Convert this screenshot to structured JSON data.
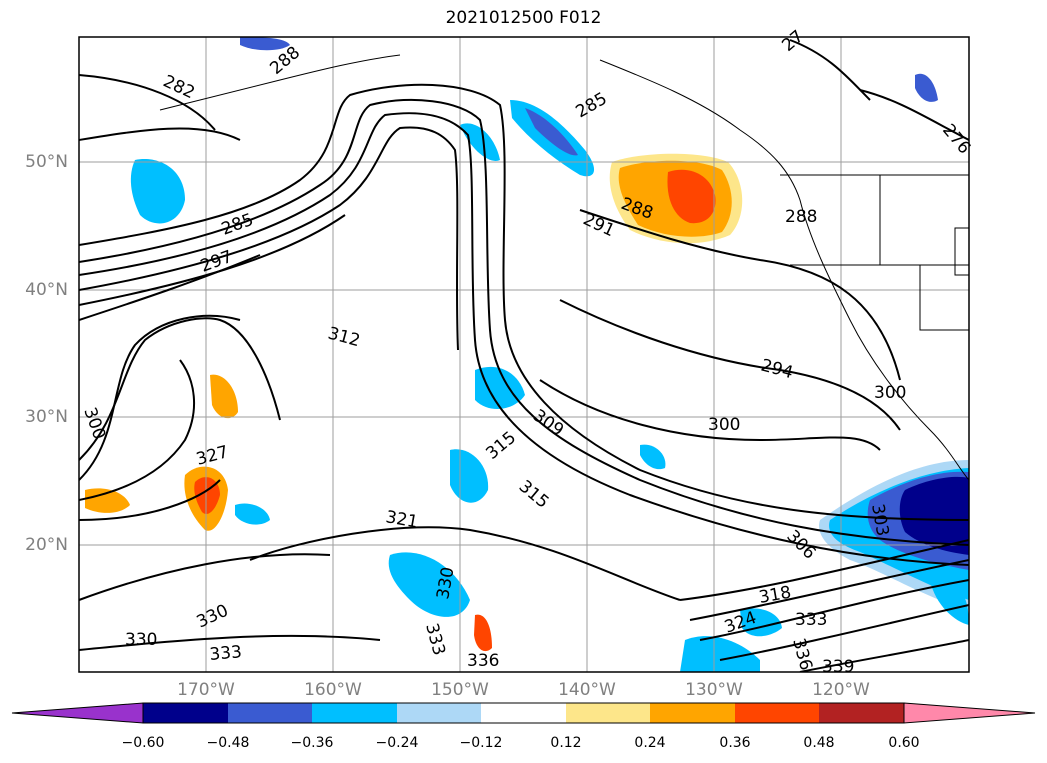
{
  "title": "2021012500 F012",
  "colors": {
    "frame": "#000000",
    "grid": "#9e9e9e",
    "coast": "#000000",
    "label_gray": "#808080"
  },
  "axes": {
    "lat_labels": [
      "50°N",
      "40°N",
      "30°N",
      "20°N"
    ],
    "lon_labels": [
      "170°W",
      "160°W",
      "150°W",
      "140°W",
      "130°W",
      "120°W"
    ]
  },
  "colorbar": {
    "colors": [
      "#9932cc",
      "#00008b",
      "#3a5bd1",
      "#00bfff",
      "#add8f6",
      "#ffffff",
      "#fde68a",
      "#ffa500",
      "#ff4500",
      "#b22222",
      "#ff88aa"
    ],
    "ticks": [
      "−0.60",
      "−0.48",
      "−0.36",
      "−0.24",
      "−0.12",
      "0.12",
      "0.24",
      "0.36",
      "0.48",
      "0.60"
    ]
  },
  "contour_labels": [
    "282",
    "288",
    "285",
    "285",
    "297",
    "312",
    "291",
    "288",
    "288",
    "294",
    "300",
    "300",
    "309",
    "315",
    "315",
    "327",
    "321",
    "306",
    "303",
    "318",
    "324",
    "330",
    "333",
    "336",
    "333",
    "330",
    "330",
    "333",
    "336",
    "339",
    "300",
    "276",
    "27"
  ]
}
